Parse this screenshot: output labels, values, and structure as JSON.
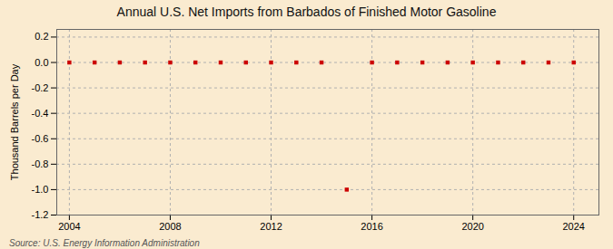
{
  "chart_data": {
    "type": "scatter",
    "title": "Annual U.S. Net Imports from Barbados of Finished Motor Gasoline",
    "ylabel": "Thousand Barrels per Day",
    "source": "Source: U.S. Energy Information Administration",
    "x": [
      2004,
      2005,
      2006,
      2007,
      2008,
      2009,
      2010,
      2011,
      2012,
      2013,
      2014,
      2015,
      2016,
      2017,
      2018,
      2019,
      2020,
      2021,
      2022,
      2023,
      2024
    ],
    "values": [
      0,
      0,
      0,
      0,
      0,
      0,
      0,
      0,
      0,
      0,
      0,
      -1.0,
      0,
      0,
      0,
      0,
      0,
      0,
      0,
      0,
      0
    ],
    "color": "#cc0000",
    "marker": "square",
    "xlim": [
      2003.5,
      2025.0
    ],
    "ylim": [
      -1.2,
      0.26
    ],
    "xticks": [
      2004,
      2008,
      2012,
      2016,
      2020,
      2024
    ],
    "yticks": [
      0.2,
      {
        "value": 0.0,
        "label": "0.0"
      },
      -0.2,
      -0.4,
      -0.6,
      -0.8,
      {
        "value": -1.0,
        "label": "-1.0"
      },
      -1.2
    ],
    "grid": true
  }
}
